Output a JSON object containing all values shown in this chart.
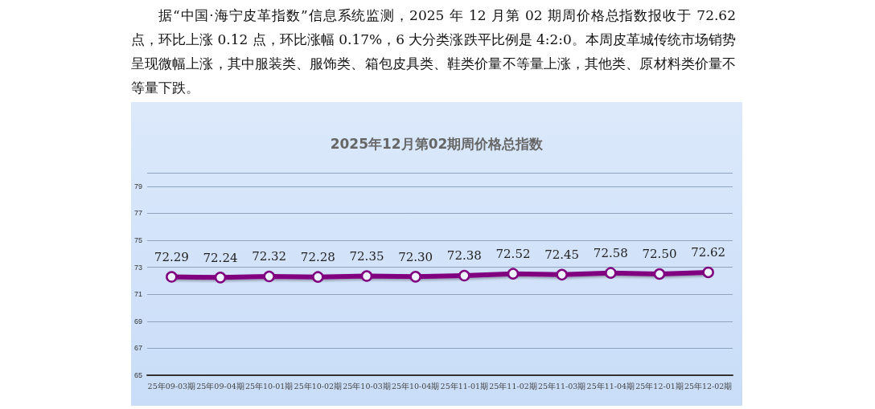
{
  "chart_data": {
    "type": "line",
    "title": "2025年12月第02期周价格总指数",
    "annotations": [
      "据“中国·海宁皮革指数”信息系统监测，2025 年 12 月第 02 期周价格总指数报收于 72.62 点，环比上涨 0.12 点，环比涨幅 0.17%，6 大分类涨跌平比例是 4:2:0。本周皮革城传统市场销势呈现微幅上涨，其中服装类、服饰类、箱包皮具类、鞋类价量不等量上涨，其他类、原材料类价量不等量下跌。"
    ],
    "categories": [
      "25年09-03期",
      "25年09-04期",
      "25年10-01期",
      "25年10-02期",
      "25年10-03期",
      "25年10-04期",
      "25年11-01期",
      "25年11-02期",
      "25年11-03期",
      "25年11-04期",
      "25年12-01期",
      "25年12-02期"
    ],
    "series": [
      {
        "color": "#800080",
        "values": [
          72.29,
          72.24,
          72.32,
          72.28,
          72.35,
          72.3,
          72.38,
          72.52,
          72.45,
          72.58,
          72.5,
          72.62
        ],
        "value_labels": [
          "72.29",
          "72.24",
          "72.32",
          "72.28",
          "72.35",
          "72.30",
          "72.38",
          "72.52",
          "72.45",
          "72.58",
          "72.50",
          "72.62"
        ]
      }
    ],
    "ylim": [
      65,
      80
    ],
    "yticks": [
      65,
      67,
      69,
      71,
      73,
      75,
      77,
      79,
      {
        "value": 80,
        "label": null
      }
    ],
    "grid": "y",
    "marker": "circle",
    "line_style": "solid"
  }
}
